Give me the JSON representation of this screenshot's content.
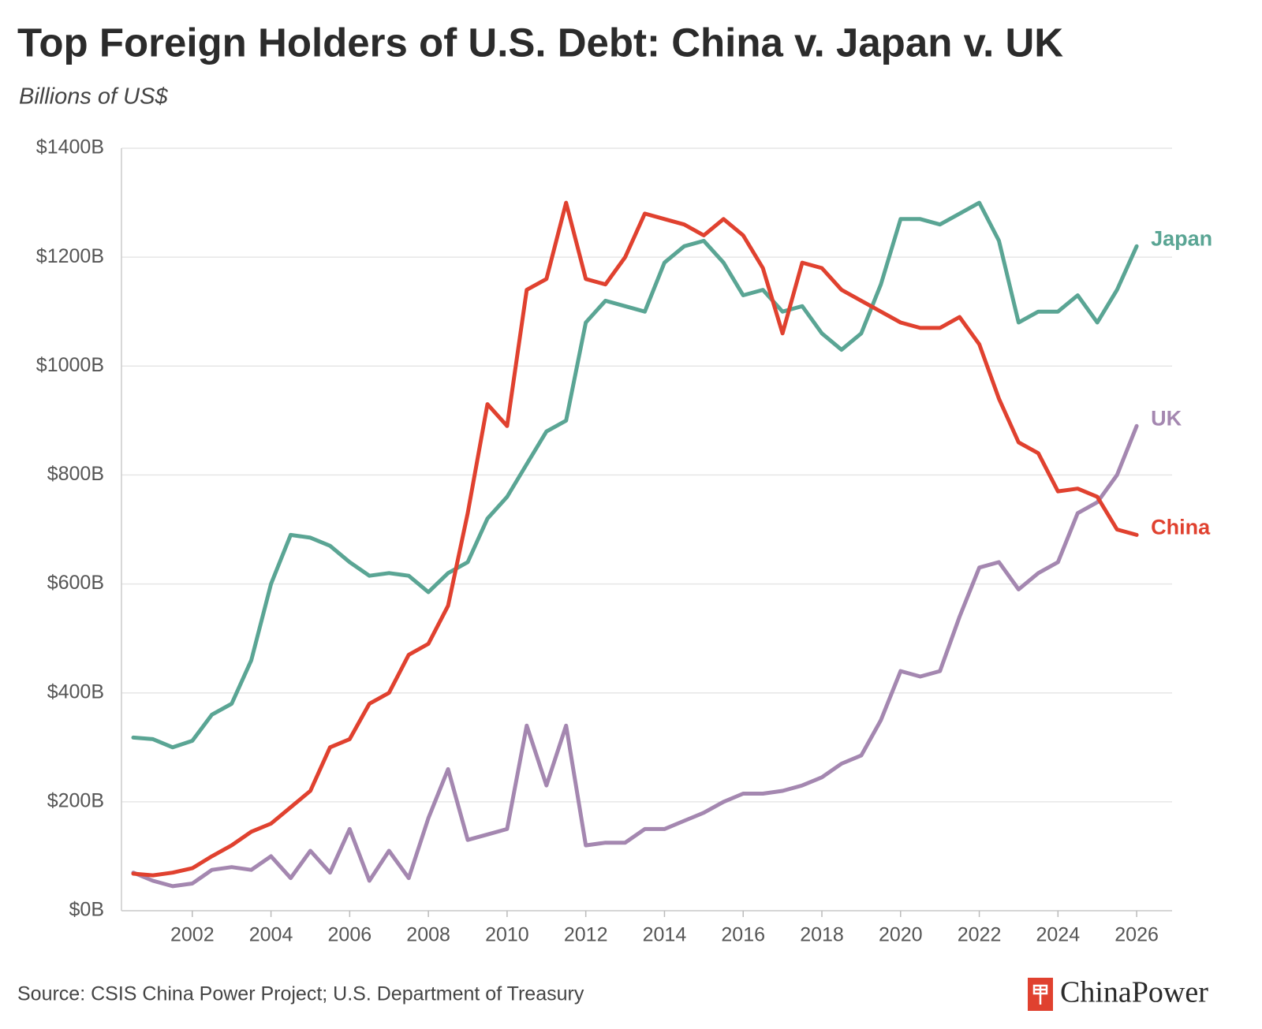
{
  "chart_data": {
    "type": "line",
    "title": "Top Foreign Holders of U.S. Debt: China v. Japan v. UK",
    "subtitle": "Billions of US$",
    "source": "Source: CSIS China Power Project; U.S. Department of Treasury",
    "brand": "ChinaPower",
    "x": [
      2000.5,
      2001,
      2001.5,
      2002,
      2002.5,
      2003,
      2003.5,
      2004,
      2004.5,
      2005,
      2005.5,
      2006,
      2006.5,
      2007,
      2007.5,
      2008,
      2008.5,
      2009,
      2009.5,
      2010,
      2010.5,
      2011,
      2011.5,
      2012,
      2012.5,
      2013,
      2013.5,
      2014,
      2014.5,
      2015,
      2015.5,
      2016,
      2016.5,
      2017,
      2017.5,
      2018,
      2018.5,
      2019,
      2019.5,
      2020,
      2020.5,
      2021,
      2021.5,
      2022,
      2022.5,
      2023,
      2023.5,
      2024,
      2024.5,
      2025,
      2025.5,
      2026
    ],
    "series": [
      {
        "name": "Japan",
        "color": "#5aa594",
        "values": [
          318,
          315,
          300,
          312,
          360,
          380,
          460,
          600,
          690,
          685,
          670,
          640,
          615,
          620,
          615,
          585,
          620,
          640,
          720,
          760,
          820,
          880,
          900,
          1080,
          1120,
          1110,
          1100,
          1190,
          1220,
          1230,
          1190,
          1130,
          1140,
          1100,
          1110,
          1060,
          1030,
          1060,
          1150,
          1270,
          1270,
          1260,
          1280,
          1300,
          1230,
          1080,
          1100,
          1100,
          1130,
          1080,
          1140,
          1220
        ]
      },
      {
        "name": "UK",
        "color": "#a487b0",
        "values": [
          70,
          55,
          45,
          50,
          75,
          80,
          75,
          100,
          60,
          110,
          70,
          150,
          55,
          110,
          60,
          170,
          260,
          130,
          140,
          150,
          340,
          230,
          340,
          120,
          125,
          125,
          150,
          150,
          165,
          180,
          200,
          215,
          215,
          220,
          230,
          245,
          270,
          285,
          350,
          440,
          430,
          440,
          540,
          630,
          640,
          590,
          620,
          640,
          730,
          750,
          800,
          890
        ]
      },
      {
        "name": "China",
        "color": "#e0412f",
        "values": [
          68,
          65,
          70,
          78,
          100,
          120,
          145,
          160,
          190,
          220,
          300,
          315,
          380,
          400,
          470,
          490,
          560,
          730,
          930,
          890,
          1140,
          1160,
          1300,
          1160,
          1150,
          1200,
          1280,
          1270,
          1260,
          1240,
          1270,
          1240,
          1180,
          1060,
          1190,
          1180,
          1140,
          1120,
          1100,
          1080,
          1070,
          1070,
          1090,
          1040,
          940,
          860,
          840,
          770,
          775,
          760,
          700,
          690
        ]
      }
    ],
    "xlim": [
      2000.2,
      2026.9
    ],
    "xticks": [
      2002,
      2004,
      2006,
      2008,
      2010,
      2012,
      2014,
      2016,
      2018,
      2020,
      2022,
      2024,
      2026
    ],
    "ylim": [
      0,
      1400
    ],
    "yticks": [
      {
        "value": 0,
        "label": "$0B"
      },
      {
        "value": 200,
        "label": "$200B"
      },
      {
        "value": 400,
        "label": "$400B"
      },
      {
        "value": 600,
        "label": "$600B"
      },
      {
        "value": 800,
        "label": "$800B"
      },
      {
        "value": 1000,
        "label": "$1000B"
      },
      {
        "value": 1200,
        "label": "$1200B"
      },
      {
        "value": 1400,
        "label": "$1400B"
      }
    ],
    "grid": true
  }
}
